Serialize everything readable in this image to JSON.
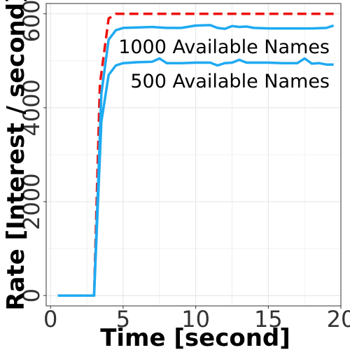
{
  "chart_data": {
    "type": "line",
    "xlabel": "Time [second]",
    "ylabel": "Rate [Interest / second]",
    "xlim": [
      -0.3,
      20
    ],
    "ylim": [
      -220,
      6220
    ],
    "xticks": [
      "0",
      "5",
      "10",
      "15",
      "20"
    ],
    "yticks": [
      "0",
      "2000",
      "4000",
      "6000"
    ],
    "grid": true,
    "legend": "none",
    "annotations": [
      "1000 Available Names",
      "500 Available Names"
    ],
    "series": [
      {
        "color": "#ee1111",
        "dash": "dashed",
        "x": [
          0.5,
          3.0,
          3.4,
          4.0,
          4.5,
          5.0,
          10.0,
          15.0,
          19.5
        ],
        "y": [
          0,
          0,
          4500,
          5900,
          6000,
          6000,
          6000,
          6000,
          6000
        ]
      },
      {
        "color": "#1eaaf1",
        "dash": "solid",
        "x": [
          0.5,
          3.0,
          3.5,
          4.0,
          4.5,
          5.0,
          6.0,
          7.0,
          8.0,
          9.0,
          10.0,
          11.0,
          11.5,
          12.0,
          12.5,
          13.0,
          13.5,
          14.0,
          15.0,
          16.0,
          17.0,
          18.0,
          19.0,
          19.5
        ],
        "y": [
          0,
          0,
          4300,
          5450,
          5650,
          5700,
          5710,
          5720,
          5700,
          5700,
          5750,
          5760,
          5700,
          5680,
          5740,
          5720,
          5730,
          5700,
          5690,
          5690,
          5690,
          5690,
          5700,
          5750
        ]
      },
      {
        "color": "#1eaaf1",
        "dash": "solid",
        "x": [
          0.5,
          3.0,
          3.5,
          4.0,
          4.5,
          5.0,
          6.0,
          7.0,
          7.5,
          8.0,
          9.0,
          10.0,
          11.0,
          11.5,
          12.0,
          12.5,
          13.0,
          13.5,
          14.0,
          15.0,
          16.0,
          17.0,
          17.5,
          18.0,
          18.5,
          19.0,
          19.5
        ],
        "y": [
          0,
          0,
          3700,
          4700,
          4900,
          4950,
          4970,
          4980,
          5050,
          4950,
          4950,
          4960,
          4960,
          4900,
          4950,
          4960,
          5020,
          4960,
          4960,
          4960,
          4950,
          4950,
          5050,
          4940,
          4950,
          4920,
          4920
        ]
      }
    ]
  }
}
